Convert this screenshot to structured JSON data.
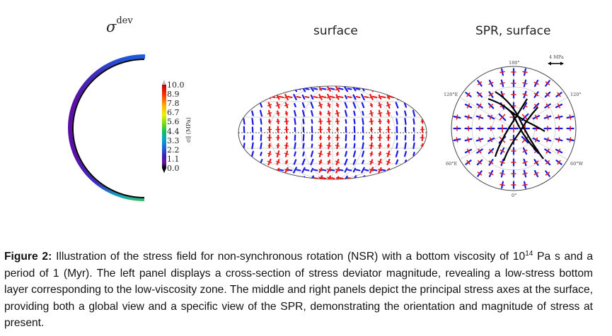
{
  "panels": {
    "left": {
      "title_base": "σ",
      "title_sup": "dev"
    },
    "middle": {
      "title": "surface"
    },
    "right": {
      "title": "SPR, surface",
      "scale_label": "4 MPa",
      "angle_labels": {
        "top": "180°",
        "bottom": "0°",
        "upper_left": "120°E",
        "upper_right": "120°",
        "lower_left": "60°E",
        "lower_right": "60°W"
      }
    }
  },
  "colorbar": {
    "label": "σ∥ (MPa)",
    "ticks": [
      "10.0",
      "8.9",
      "7.8",
      "6.7",
      "5.6",
      "4.4",
      "3.3",
      "2.2",
      "1.1",
      "0.0"
    ],
    "colors": [
      "#d40000",
      "#ff5500",
      "#ffb000",
      "#f0f000",
      "#90e000",
      "#20c040",
      "#00b0b0",
      "#2070e0",
      "#3030c0",
      "#6a0fa0",
      "#000000"
    ]
  },
  "legend_colors": {
    "compression": "#1a1ae6",
    "tension": "#e61a1a",
    "trajectory": "#000000"
  },
  "caption": {
    "label": "Figure 2:",
    "text_part1": " Illustration of the stress field for non-synchronous rotation (NSR) with a bottom viscosity of 10",
    "exponent": "14",
    "text_part2": " Pa s and a period of 1 (Myr). The left panel displays a cross-section of stress deviator magnitude, revealing a low-stress bottom layer corresponding to the low-viscosity zone. The middle and right panels depict the principal stress axes at the surface, providing both a global view and a specific view of the SPR, demonstrating the orientation and magnitude of stress at present."
  }
}
